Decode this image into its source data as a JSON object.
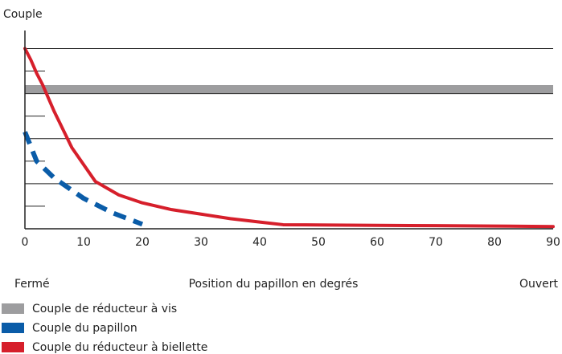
{
  "chart_data": {
    "type": "line",
    "y_label": "Couple",
    "x_label": "Position du papillon en degrés",
    "x_start_label": "Fermé",
    "x_end_label": "Ouvert",
    "xlim": [
      0,
      90
    ],
    "xticks": [
      0,
      10,
      20,
      30,
      40,
      50,
      60,
      70,
      80,
      90
    ],
    "ylim": [
      0,
      8.8
    ],
    "yticks": [
      2,
      4,
      6,
      8
    ],
    "yticks_minor": [
      1,
      3,
      5,
      7
    ],
    "grid": true,
    "series": [
      {
        "name": "Couple de réducteur à vis",
        "color": "#9d9d9f",
        "style": "band",
        "x": [
          0,
          90
        ],
        "values": [
          6.2,
          6.2
        ]
      },
      {
        "name": "Couple du papillon",
        "color": "#0a5ca8",
        "style": "dashed",
        "x": [
          0,
          2,
          5,
          10,
          15,
          20
        ],
        "values": [
          4.3,
          3.0,
          2.25,
          1.35,
          0.7,
          0.2
        ]
      },
      {
        "name": "Couple du réducteur à biellette",
        "color": "#d61f2b",
        "style": "solid",
        "x": [
          0,
          1,
          2,
          3,
          5,
          8,
          12,
          16,
          20,
          25,
          30,
          35,
          40,
          44,
          50,
          60,
          70,
          80,
          90
        ],
        "values": [
          8.0,
          7.5,
          6.9,
          6.4,
          5.2,
          3.6,
          2.1,
          1.5,
          1.15,
          0.85,
          0.65,
          0.45,
          0.3,
          0.18,
          0.17,
          0.15,
          0.14,
          0.12,
          0.1
        ]
      }
    ]
  }
}
